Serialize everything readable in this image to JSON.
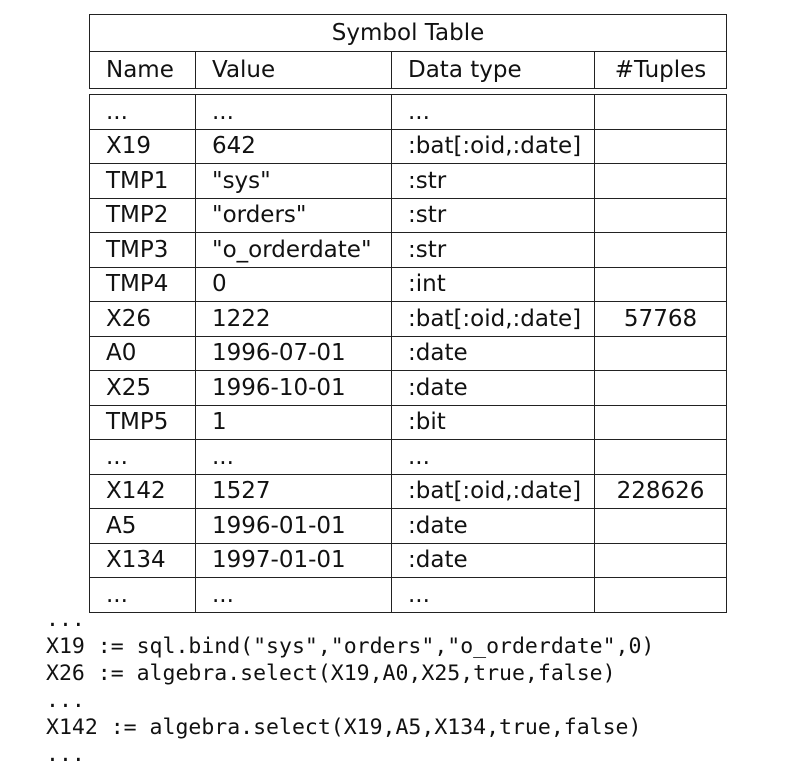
{
  "table": {
    "title": "Symbol Table",
    "headers": [
      "Name",
      "Value",
      "Data type",
      "#Tuples"
    ],
    "rows": [
      [
        "...",
        "...",
        "...",
        ""
      ],
      [
        "X19",
        "642",
        ":bat[:oid,:date]",
        ""
      ],
      [
        "TMP1",
        "\"sys\"",
        ":str",
        ""
      ],
      [
        "TMP2",
        "\"orders\"",
        ":str",
        ""
      ],
      [
        "TMP3",
        "\"o_orderdate\"",
        ":str",
        ""
      ],
      [
        "TMP4",
        "0",
        ":int",
        ""
      ],
      [
        "X26",
        "1222",
        ":bat[:oid,:date]",
        "57768"
      ],
      [
        "A0",
        "1996-07-01",
        ":date",
        ""
      ],
      [
        "X25",
        "1996-10-01",
        ":date",
        ""
      ],
      [
        "TMP5",
        "1",
        ":bit",
        ""
      ],
      [
        "...",
        "...",
        "...",
        ""
      ],
      [
        "X142",
        "1527",
        ":bat[:oid,:date]",
        "228626"
      ],
      [
        "A5",
        "1996-01-01",
        ":date",
        ""
      ],
      [
        "X134",
        "1997-01-01",
        ":date",
        ""
      ],
      [
        "...",
        "...",
        "...",
        ""
      ]
    ]
  },
  "code": [
    "...",
    "X19 := sql.bind(\"sys\",\"orders\",\"o_orderdate\",0)",
    "X26 := algebra.select(X19,A0,X25,true,false)",
    "...",
    "X142 := algebra.select(X19,A5,X134,true,false)",
    "..."
  ]
}
